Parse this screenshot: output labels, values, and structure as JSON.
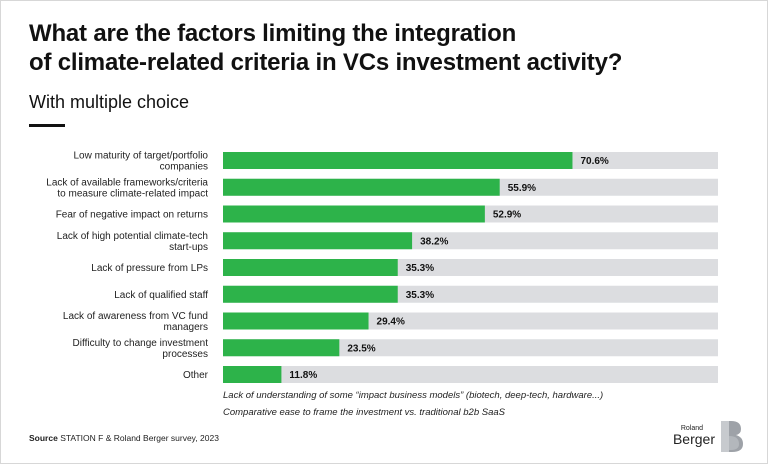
{
  "header": {
    "title_line1": "What are the factors limiting the integration",
    "title_line2": "of climate-related criteria in VCs investment activity?",
    "subtitle": "With multiple choice"
  },
  "chart_data": {
    "type": "bar",
    "orientation": "horizontal",
    "categories": [
      [
        "Low maturity of target/portfolio",
        "companies"
      ],
      [
        "Lack of available frameworks/criteria",
        "to measure climate-related impact"
      ],
      [
        "Fear of negative impact on returns"
      ],
      [
        "Lack of high potential climate-tech",
        "start-ups"
      ],
      [
        "Lack of pressure from LPs"
      ],
      [
        "Lack of qualified staff"
      ],
      [
        "Lack of awareness from VC fund",
        "managers"
      ],
      [
        "Difficulty to change investment",
        "processes"
      ],
      [
        "Other"
      ]
    ],
    "values": [
      70.6,
      55.9,
      52.9,
      38.2,
      35.3,
      35.3,
      29.4,
      23.5,
      11.8
    ],
    "value_labels": [
      "70.6%",
      "55.9%",
      "52.9%",
      "38.2%",
      "35.3%",
      "35.3%",
      "29.4%",
      "23.5%",
      "11.8%"
    ],
    "xlim": [
      0,
      100
    ],
    "bar_color": "#2db34a",
    "track_color": "#dcdde0",
    "grid": false
  },
  "notes": {
    "line1": "Lack of understanding of some “impact business models” (biotech, deep-tech, hardware...)",
    "line2": "Comparative ease to frame the investment vs. traditional b2b SaaS"
  },
  "source": {
    "label": "Source",
    "text": "STATION F & Roland Berger survey, 2023"
  },
  "logo": {
    "small_text": "Roland",
    "big_text": "Berger"
  }
}
